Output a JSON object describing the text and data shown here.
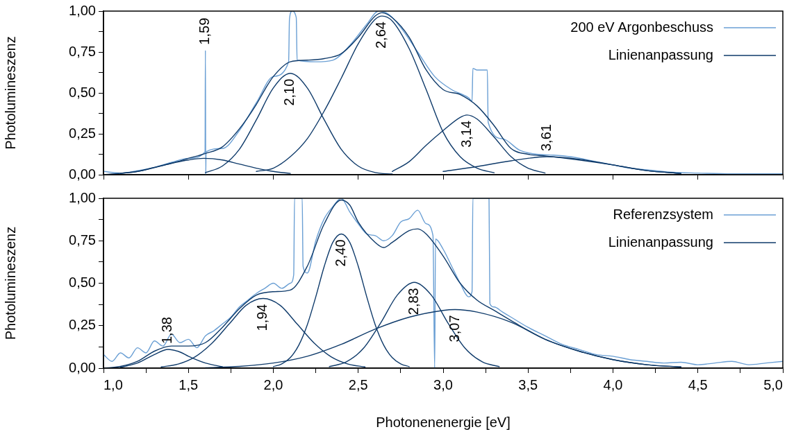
{
  "chart_data": [
    {
      "type": "line",
      "ylabel": "Photolumineszenz",
      "legend": "top right",
      "grid": false,
      "marker": "none",
      "line_style": "solid",
      "tick_labels": "y",
      "xlim": [
        1.0,
        5.0
      ],
      "ylim": [
        0,
        1.0
      ],
      "yticks": [
        {
          "value": 0,
          "label": "0,00"
        },
        {
          "value": 0.125,
          "label": null
        },
        {
          "value": 0.25,
          "label": "0,25"
        },
        {
          "value": 0.375,
          "label": null
        },
        {
          "value": 0.5,
          "label": "0,50"
        },
        {
          "value": 0.625,
          "label": null
        },
        {
          "value": 0.75,
          "label": "0,75"
        },
        {
          "value": 0.875,
          "label": null
        },
        {
          "value": 1.0,
          "label": "1,00"
        }
      ],
      "series": [
        {
          "name": "200 eV Argonbeschuss",
          "color": "#6a9fd4",
          "x": [
            1.0,
            1.1,
            1.2,
            1.3,
            1.4,
            1.5,
            1.598,
            1.6,
            1.602,
            1.604,
            1.7,
            1.8,
            1.9,
            2.0,
            2.09,
            2.095,
            2.11,
            2.135,
            2.14,
            2.25,
            2.35,
            2.45,
            2.55,
            2.62,
            2.68,
            2.75,
            2.85,
            2.95,
            3.05,
            3.15,
            3.17,
            3.175,
            3.2,
            3.26,
            3.265,
            3.35,
            3.45,
            3.55,
            3.65,
            3.75,
            3.9,
            4.0,
            4.1,
            4.2,
            4.35,
            4.5,
            4.7,
            5.0
          ],
          "values": [
            0.02,
            0.01,
            0.025,
            0.045,
            0.075,
            0.1,
            0.14,
            0.76,
            0.0,
            0.14,
            0.16,
            0.27,
            0.44,
            0.6,
            0.69,
            0.95,
            1.0,
            0.96,
            0.7,
            0.69,
            0.7,
            0.79,
            0.92,
            1.0,
            0.98,
            0.9,
            0.75,
            0.6,
            0.52,
            0.47,
            0.45,
            0.65,
            0.64,
            0.64,
            0.32,
            0.22,
            0.15,
            0.125,
            0.12,
            0.11,
            0.08,
            0.06,
            0.04,
            0.03,
            0.015,
            0.01,
            0.005,
            0.005
          ]
        },
        {
          "name": "Linienanpassung",
          "color": "#0e3a6a",
          "x": [
            1.0,
            1.2,
            1.4,
            1.5,
            1.6,
            1.7,
            1.8,
            1.9,
            1.95,
            2.0,
            2.1,
            2.2,
            2.3,
            2.4,
            2.5,
            2.6,
            2.64,
            2.7,
            2.8,
            2.9,
            3.0,
            3.1,
            3.2,
            3.3,
            3.4,
            3.5,
            3.6,
            3.8,
            4.0,
            4.2,
            4.4
          ],
          "values": [
            0,
            0.02,
            0.07,
            0.1,
            0.13,
            0.17,
            0.28,
            0.43,
            0.52,
            0.6,
            0.69,
            0.7,
            0.71,
            0.74,
            0.84,
            0.97,
            0.99,
            0.96,
            0.84,
            0.64,
            0.52,
            0.49,
            0.42,
            0.3,
            0.16,
            0.125,
            0.115,
            0.09,
            0.06,
            0.025,
            0.008
          ]
        },
        {
          "color": "#0e3a6a",
          "x": [
            1.1,
            1.2,
            1.3,
            1.4,
            1.5,
            1.59,
            1.7,
            1.8,
            1.9,
            2.0,
            2.1
          ],
          "values": [
            0.008,
            0.02,
            0.045,
            0.07,
            0.09,
            0.1,
            0.09,
            0.065,
            0.04,
            0.02,
            0.008
          ]
        },
        {
          "color": "#0e3a6a",
          "x": [
            1.6,
            1.7,
            1.8,
            1.9,
            2.0,
            2.1,
            2.2,
            2.3,
            2.4,
            2.5,
            2.6,
            2.7
          ],
          "values": [
            0.013,
            0.053,
            0.155,
            0.335,
            0.53,
            0.62,
            0.53,
            0.335,
            0.155,
            0.053,
            0.013,
            0.004
          ]
        },
        {
          "color": "#0e3a6a",
          "x": [
            1.9,
            2.0,
            2.1,
            2.2,
            2.3,
            2.4,
            2.5,
            2.6,
            2.64,
            2.7,
            2.8,
            2.9,
            3.0,
            3.1,
            3.2,
            3.3
          ],
          "values": [
            0.02,
            0.04,
            0.11,
            0.22,
            0.39,
            0.59,
            0.8,
            0.95,
            0.97,
            0.94,
            0.77,
            0.52,
            0.26,
            0.11,
            0.04,
            0.012
          ]
        },
        {
          "color": "#0e3a6a",
          "x": [
            2.7,
            2.8,
            2.9,
            3.0,
            3.1,
            3.14,
            3.2,
            3.3,
            3.4,
            3.5,
            3.6
          ],
          "values": [
            0.02,
            0.08,
            0.18,
            0.27,
            0.35,
            0.365,
            0.34,
            0.23,
            0.11,
            0.04,
            0.01
          ]
        },
        {
          "color": "#0e3a6a",
          "x": [
            3.0,
            3.2,
            3.4,
            3.61,
            3.8,
            4.0,
            4.2,
            4.4
          ],
          "values": [
            0.02,
            0.05,
            0.085,
            0.11,
            0.095,
            0.06,
            0.025,
            0.008
          ]
        }
      ],
      "annotations": [
        {
          "text": "1,59",
          "x": 1.6,
          "y": 0.76
        },
        {
          "text": "2,10",
          "x": 2.1,
          "y": 0.62
        },
        {
          "text": "2,64",
          "x": 2.64,
          "y": 0.97
        },
        {
          "text": "3,14",
          "x": 3.14,
          "y": 0.365
        },
        {
          "text": "3,61",
          "x": 3.61,
          "y": 0.11
        }
      ]
    },
    {
      "type": "line",
      "xlabel": "Photonenenergie [eV]",
      "ylabel": "Photolumineszenz",
      "legend": "top right",
      "grid": false,
      "marker": "none",
      "line_style": "solid",
      "xlim": [
        1.0,
        5.0
      ],
      "xticks": [
        {
          "value": 1.0,
          "label": "1,0"
        },
        {
          "value": 1.25,
          "label": null
        },
        {
          "value": 1.5,
          "label": "1,5"
        },
        {
          "value": 1.75,
          "label": null
        },
        {
          "value": 2.0,
          "label": "2,0"
        },
        {
          "value": 2.25,
          "label": null
        },
        {
          "value": 2.5,
          "label": "2,5"
        },
        {
          "value": 2.75,
          "label": null
        },
        {
          "value": 3.0,
          "label": "3,0"
        },
        {
          "value": 3.25,
          "label": null
        },
        {
          "value": 3.5,
          "label": "3,5"
        },
        {
          "value": 3.75,
          "label": null
        },
        {
          "value": 4.0,
          "label": "4,0"
        },
        {
          "value": 4.25,
          "label": null
        },
        {
          "value": 4.5,
          "label": "4,5"
        },
        {
          "value": 4.75,
          "label": null
        },
        {
          "value": 5.0,
          "label": "5,0"
        }
      ],
      "ylim": [
        0,
        1.0
      ],
      "yticks": [
        {
          "value": 0,
          "label": "0,00"
        },
        {
          "value": 0.125,
          "label": null
        },
        {
          "value": 0.25,
          "label": "0,25"
        },
        {
          "value": 0.375,
          "label": null
        },
        {
          "value": 0.5,
          "label": "0,50"
        },
        {
          "value": 0.625,
          "label": null
        },
        {
          "value": 0.75,
          "label": "0,75"
        },
        {
          "value": 0.875,
          "label": null
        },
        {
          "value": 1.0,
          "label": "1,00"
        }
      ],
      "series": [
        {
          "name": "Referenzsystem",
          "color": "#6a9fd4",
          "x": [
            1.0,
            1.05,
            1.1,
            1.15,
            1.2,
            1.25,
            1.3,
            1.35,
            1.4,
            1.45,
            1.5,
            1.55,
            1.6,
            1.65,
            1.7,
            1.75,
            1.8,
            1.85,
            1.9,
            1.95,
            2.0,
            2.05,
            2.1,
            2.12,
            2.125,
            2.17,
            2.175,
            2.2,
            2.25,
            2.3,
            2.35,
            2.4,
            2.45,
            2.5,
            2.55,
            2.6,
            2.65,
            2.7,
            2.75,
            2.8,
            2.85,
            2.9,
            2.94,
            2.95,
            2.955,
            3.0,
            3.05,
            3.1,
            3.15,
            3.17,
            3.175,
            3.27,
            3.275,
            3.3,
            3.35,
            3.4,
            3.5,
            3.6,
            3.7,
            3.8,
            3.9,
            4.0,
            4.1,
            4.2,
            4.3,
            4.4,
            4.5,
            4.6,
            4.7,
            4.8,
            4.9,
            5.0
          ],
          "values": [
            0.08,
            0.04,
            0.09,
            0.06,
            0.12,
            0.09,
            0.16,
            0.13,
            0.2,
            0.15,
            0.17,
            0.12,
            0.19,
            0.22,
            0.26,
            0.3,
            0.36,
            0.4,
            0.44,
            0.47,
            0.5,
            0.47,
            0.5,
            0.55,
            1.0,
            1.0,
            0.6,
            0.56,
            0.75,
            0.88,
            0.95,
            1.0,
            0.92,
            0.85,
            0.79,
            0.78,
            0.75,
            0.78,
            0.86,
            0.88,
            0.93,
            0.85,
            0.78,
            0.0,
            0.76,
            0.7,
            0.6,
            0.5,
            0.42,
            0.45,
            1.0,
            1.0,
            0.38,
            0.36,
            0.33,
            0.3,
            0.24,
            0.19,
            0.14,
            0.11,
            0.08,
            0.07,
            0.05,
            0.04,
            0.03,
            0.035,
            0.02,
            0.03,
            0.04,
            0.02,
            0.03,
            0.04
          ]
        },
        {
          "name": "Linienanpassung",
          "color": "#0e3a6a",
          "x": [
            1.0,
            1.1,
            1.2,
            1.3,
            1.4,
            1.5,
            1.6,
            1.7,
            1.8,
            1.9,
            2.0,
            2.1,
            2.2,
            2.3,
            2.4,
            2.45,
            2.5,
            2.6,
            2.65,
            2.7,
            2.8,
            2.85,
            2.9,
            3.0,
            3.1,
            3.2,
            3.3,
            3.4,
            3.6,
            3.8,
            4.0,
            4.2,
            4.4
          ],
          "values": [
            0,
            0.01,
            0.04,
            0.1,
            0.13,
            0.13,
            0.15,
            0.24,
            0.35,
            0.43,
            0.45,
            0.46,
            0.6,
            0.85,
            0.99,
            0.96,
            0.86,
            0.74,
            0.71,
            0.74,
            0.81,
            0.82,
            0.79,
            0.66,
            0.5,
            0.4,
            0.34,
            0.28,
            0.17,
            0.1,
            0.05,
            0.02,
            0.007
          ]
        },
        {
          "color": "#0e3a6a",
          "x": [
            1.1,
            1.2,
            1.3,
            1.38,
            1.45,
            1.5,
            1.6,
            1.7
          ],
          "values": [
            0.005,
            0.03,
            0.08,
            0.11,
            0.095,
            0.07,
            0.03,
            0.008
          ]
        },
        {
          "color": "#0e3a6a",
          "x": [
            1.34,
            1.44,
            1.54,
            1.64,
            1.74,
            1.84,
            1.94,
            2.04,
            2.14,
            2.24,
            2.34,
            2.44,
            2.54
          ],
          "values": [
            0.007,
            0.024,
            0.067,
            0.148,
            0.26,
            0.37,
            0.41,
            0.37,
            0.26,
            0.148,
            0.067,
            0.024,
            0.007
          ]
        },
        {
          "color": "#0e3a6a",
          "x": [
            2.0,
            2.05,
            2.1,
            2.15,
            2.2,
            2.25,
            2.3,
            2.35,
            2.4,
            2.45,
            2.5,
            2.55,
            2.6,
            2.65,
            2.7,
            2.75,
            2.8
          ],
          "values": [
            0.009,
            0.025,
            0.062,
            0.135,
            0.255,
            0.42,
            0.6,
            0.74,
            0.79,
            0.74,
            0.6,
            0.42,
            0.255,
            0.135,
            0.062,
            0.025,
            0.009
          ]
        },
        {
          "color": "#0e3a6a",
          "x": [
            2.33,
            2.43,
            2.53,
            2.63,
            2.73,
            2.83,
            2.93,
            3.03,
            3.13,
            3.23,
            3.33
          ],
          "values": [
            0.009,
            0.037,
            0.116,
            0.263,
            0.43,
            0.505,
            0.43,
            0.263,
            0.116,
            0.037,
            0.009
          ]
        },
        {
          "color": "#0e3a6a",
          "x": [
            1.6,
            1.8,
            2.0,
            2.2,
            2.4,
            2.6,
            2.8,
            3.0,
            3.07,
            3.2,
            3.4,
            3.6,
            3.8,
            4.0,
            4.2,
            4.4
          ],
          "values": [
            0.002,
            0.01,
            0.03,
            0.07,
            0.14,
            0.23,
            0.3,
            0.34,
            0.345,
            0.33,
            0.27,
            0.17,
            0.1,
            0.05,
            0.02,
            0.007
          ]
        }
      ],
      "annotations": [
        {
          "text": "1,38",
          "x": 1.38,
          "y": 0.11
        },
        {
          "text": "1,94",
          "x": 1.94,
          "y": 0.41
        },
        {
          "text": "2,40",
          "x": 2.4,
          "y": 0.79
        },
        {
          "text": "2,83",
          "x": 2.83,
          "y": 0.505
        },
        {
          "text": "3,07",
          "x": 3.07,
          "y": 0.345
        }
      ]
    }
  ]
}
